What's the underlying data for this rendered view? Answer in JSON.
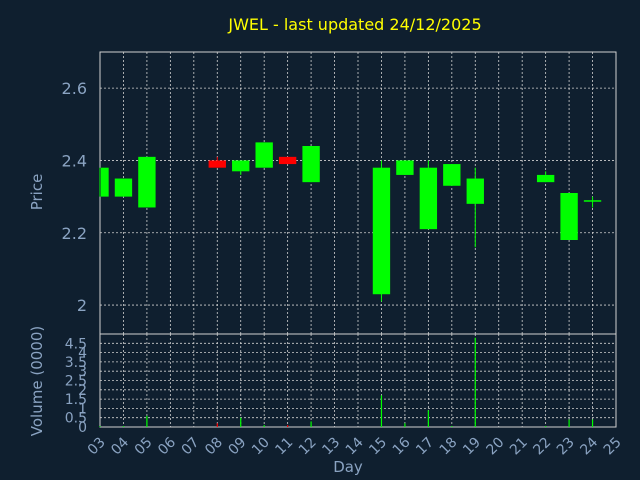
{
  "chart_data": {
    "type": "candlestick",
    "title": "JWEL - last updated 24/12/2025",
    "xlabel": "Day",
    "ylabel_price": "Price",
    "ylabel_volume": "Volume (0000)",
    "x_ticks": [
      "03",
      "04",
      "05",
      "06",
      "07",
      "08",
      "09",
      "10",
      "11",
      "12",
      "13",
      "14",
      "15",
      "16",
      "17",
      "18",
      "19",
      "20",
      "21",
      "22",
      "23",
      "24",
      "25"
    ],
    "price_ylim": [
      1.92,
      2.7
    ],
    "price_ticks": [
      "2",
      "2.2",
      "2.4",
      "2.6"
    ],
    "volume_ylim": [
      0,
      5
    ],
    "volume_ticks": [
      "0",
      "0.5",
      "1",
      "1.5",
      "2",
      "2.5",
      "3",
      "3.5",
      "4",
      "4.5"
    ],
    "grid": true,
    "colors": {
      "background": "#0f1f2f",
      "up": "#00ff00",
      "down": "#ff0000",
      "title": "#ffff00",
      "axis_text": "#8aa3c2",
      "grid": "#d0d0d0"
    },
    "candles": [
      {
        "day": "03",
        "open": 2.3,
        "high": 2.38,
        "low": 2.3,
        "close": 2.38,
        "volume": 0.05
      },
      {
        "day": "04",
        "open": 2.3,
        "high": 2.35,
        "low": 2.3,
        "close": 2.35,
        "volume": 0.05
      },
      {
        "day": "05",
        "open": 2.27,
        "high": 2.41,
        "low": 2.27,
        "close": 2.41,
        "volume": 0.6
      },
      {
        "day": "08",
        "open": 2.4,
        "high": 2.41,
        "low": 2.38,
        "close": 2.38,
        "volume": 0.2
      },
      {
        "day": "09",
        "open": 2.37,
        "high": 2.4,
        "low": 2.36,
        "close": 2.4,
        "volume": 0.5
      },
      {
        "day": "10",
        "open": 2.38,
        "high": 2.45,
        "low": 2.38,
        "close": 2.45,
        "volume": 0.1
      },
      {
        "day": "11",
        "open": 2.41,
        "high": 2.41,
        "low": 2.39,
        "close": 2.39,
        "volume": 0.1
      },
      {
        "day": "12",
        "open": 2.34,
        "high": 2.44,
        "low": 2.34,
        "close": 2.44,
        "volume": 0.3
      },
      {
        "day": "15",
        "open": 2.03,
        "high": 2.4,
        "low": 2.01,
        "close": 2.38,
        "volume": 1.7
      },
      {
        "day": "16",
        "open": 2.36,
        "high": 2.4,
        "low": 2.36,
        "close": 2.4,
        "volume": 0.2
      },
      {
        "day": "17",
        "open": 2.21,
        "high": 2.4,
        "low": 2.21,
        "close": 2.38,
        "volume": 0.9
      },
      {
        "day": "18",
        "open": 2.33,
        "high": 2.39,
        "low": 2.33,
        "close": 2.39,
        "volume": 0.05
      },
      {
        "day": "19",
        "open": 2.28,
        "high": 2.38,
        "low": 2.16,
        "close": 2.35,
        "volume": 4.8
      },
      {
        "day": "22",
        "open": 2.34,
        "high": 2.37,
        "low": 2.34,
        "close": 2.36,
        "volume": 0.05
      },
      {
        "day": "23",
        "open": 2.18,
        "high": 2.31,
        "low": 2.18,
        "close": 2.31,
        "volume": 0.4
      },
      {
        "day": "24",
        "open": 2.29,
        "high": 2.3,
        "low": 2.27,
        "close": 2.29,
        "volume": 0.4
      }
    ]
  }
}
